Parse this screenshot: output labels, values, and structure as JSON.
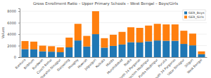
{
  "chart_data": {
    "type": "bar",
    "title": "Gross Enrollment Ratio – Upper Primary Schools – West Bengal – Boys/Girls",
    "y_label": "Values",
    "categories": [
      "Bankura",
      "Birbhum",
      "Burdwan",
      "Cooch Behar",
      "Dakshin Dinajpur",
      "Darjeeling",
      "Hooghly",
      "Howrah",
      "Jalpaiguri",
      "Kolkata",
      "Malda",
      "Murshidabad",
      "Nadia",
      "North 24 Parganas",
      "Paschim Medinipur",
      "Purba Medinipur",
      "Purulia",
      "South 24 Parganas",
      "Uttar Dinajpur",
      "Siliguri",
      "West Bengal"
    ],
    "series": [
      {
        "name": "GER_Boys",
        "color": "#1f77b4",
        "values": [
          1400,
          1350,
          1000,
          950,
          850,
          1700,
          2900,
          1850,
          4000,
          1650,
          1950,
          2200,
          2600,
          2550,
          2750,
          2900,
          2850,
          2850,
          2300,
          2050,
          500
        ]
      },
      {
        "name": "GER_Girls",
        "color": "#ff7f0e",
        "values": [
          1400,
          1350,
          1000,
          950,
          850,
          1700,
          2900,
          1850,
          4000,
          1650,
          1950,
          2200,
          2600,
          2550,
          2750,
          2900,
          2850,
          2850,
          2300,
          2050,
          500
        ]
      }
    ],
    "stacked": true,
    "ylim": [
      0,
      8500
    ],
    "yticks": [
      0,
      2000,
      4000,
      6000,
      8000
    ],
    "grid": true,
    "legend": "top-right"
  }
}
